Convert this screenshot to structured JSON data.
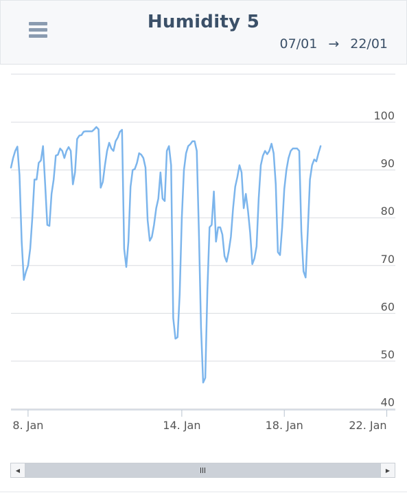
{
  "header": {
    "title": "Humidity 5",
    "range_start": "07/01",
    "range_arrow": "→",
    "range_end": "22/01"
  },
  "icons": {
    "menu": "hamburger-menu-icon",
    "scroll_left": "arrow-left-icon",
    "scroll_right": "arrow-right-icon",
    "scroll_grip": "grip-icon"
  },
  "colors": {
    "line": "#7cb5ec",
    "title": "#3b5068",
    "grid": "#d8dbe0"
  },
  "chart_data": {
    "type": "line",
    "title": "Humidity 5",
    "xlabel": "",
    "ylabel": "",
    "x_range": [
      "2024-01-07 08:00",
      "2024-01-22 08:00"
    ],
    "ylim": [
      40,
      100
    ],
    "y_ticks": [
      40,
      50,
      60,
      70,
      80,
      90,
      100
    ],
    "x_ticks": [
      "8. Jan",
      "14. Jan",
      "18. Jan",
      "22. Jan"
    ],
    "grid": true,
    "series": [
      {
        "values": [
          [
            "2024-01-07 08:00",
            90.5
          ],
          [
            "2024-01-07 10:00",
            92.5
          ],
          [
            "2024-01-07 12:00",
            94.0
          ],
          [
            "2024-01-07 14:00",
            94.9
          ],
          [
            "2024-01-07 16:00",
            89.0
          ],
          [
            "2024-01-07 18:00",
            75.0
          ],
          [
            "2024-01-07 20:00",
            67.0
          ],
          [
            "2024-01-07 22:00",
            68.7
          ],
          [
            "2024-01-08 00:00",
            70.0
          ],
          [
            "2024-01-08 02:00",
            73.5
          ],
          [
            "2024-01-08 04:00",
            80.0
          ],
          [
            "2024-01-08 06:00",
            88.0
          ],
          [
            "2024-01-08 08:00",
            88.0
          ],
          [
            "2024-01-08 10:00",
            91.5
          ],
          [
            "2024-01-08 12:00",
            92.0
          ],
          [
            "2024-01-08 14:00",
            95.0
          ],
          [
            "2024-01-08 16:00",
            87.0
          ],
          [
            "2024-01-08 18:00",
            78.5
          ],
          [
            "2024-01-08 20:00",
            78.3
          ],
          [
            "2024-01-08 22:00",
            85.0
          ],
          [
            "2024-01-09 00:00",
            88.0
          ],
          [
            "2024-01-09 02:00",
            93.0
          ],
          [
            "2024-01-09 04:00",
            93.2
          ],
          [
            "2024-01-09 06:00",
            94.5
          ],
          [
            "2024-01-09 08:00",
            94.0
          ],
          [
            "2024-01-09 10:00",
            92.5
          ],
          [
            "2024-01-09 12:00",
            94.0
          ],
          [
            "2024-01-09 14:00",
            94.8
          ],
          [
            "2024-01-09 16:00",
            94.0
          ],
          [
            "2024-01-09 18:00",
            87.0
          ],
          [
            "2024-01-09 20:00",
            89.5
          ],
          [
            "2024-01-09 22:00",
            96.5
          ],
          [
            "2024-01-10 00:00",
            97.2
          ],
          [
            "2024-01-10 02:00",
            97.3
          ],
          [
            "2024-01-10 04:00",
            98.0
          ],
          [
            "2024-01-10 06:00",
            98.1
          ],
          [
            "2024-01-10 08:00",
            98.1
          ],
          [
            "2024-01-10 10:00",
            98.1
          ],
          [
            "2024-01-10 12:00",
            98.1
          ],
          [
            "2024-01-10 14:00",
            98.5
          ],
          [
            "2024-01-10 16:00",
            99.0
          ],
          [
            "2024-01-10 18:00",
            98.5
          ],
          [
            "2024-01-10 20:00",
            86.3
          ],
          [
            "2024-01-10 22:00",
            87.5
          ],
          [
            "2024-01-11 00:00",
            91.0
          ],
          [
            "2024-01-11 02:00",
            94.0
          ],
          [
            "2024-01-11 04:00",
            95.7
          ],
          [
            "2024-01-11 06:00",
            94.5
          ],
          [
            "2024-01-11 08:00",
            94.0
          ],
          [
            "2024-01-11 10:00",
            96.0
          ],
          [
            "2024-01-11 12:00",
            96.8
          ],
          [
            "2024-01-11 14:00",
            98.0
          ],
          [
            "2024-01-11 16:00",
            98.4
          ],
          [
            "2024-01-11 18:00",
            73.5
          ],
          [
            "2024-01-11 20:00",
            69.7
          ],
          [
            "2024-01-11 22:00",
            75.0
          ],
          [
            "2024-01-12 00:00",
            86.5
          ],
          [
            "2024-01-12 02:00",
            90.0
          ],
          [
            "2024-01-12 04:00",
            90.2
          ],
          [
            "2024-01-12 06:00",
            91.5
          ],
          [
            "2024-01-12 08:00",
            93.5
          ],
          [
            "2024-01-12 10:00",
            93.2
          ],
          [
            "2024-01-12 12:00",
            92.5
          ],
          [
            "2024-01-12 14:00",
            90.5
          ],
          [
            "2024-01-12 16:00",
            79.5
          ],
          [
            "2024-01-12 18:00",
            75.2
          ],
          [
            "2024-01-12 20:00",
            76.0
          ],
          [
            "2024-01-12 22:00",
            78.5
          ],
          [
            "2024-01-13 00:00",
            82.0
          ],
          [
            "2024-01-13 02:00",
            84.0
          ],
          [
            "2024-01-13 04:00",
            89.5
          ],
          [
            "2024-01-13 06:00",
            84.0
          ],
          [
            "2024-01-13 08:00",
            83.5
          ],
          [
            "2024-01-13 10:00",
            94.0
          ],
          [
            "2024-01-13 12:00",
            95.0
          ],
          [
            "2024-01-13 14:00",
            91.0
          ],
          [
            "2024-01-13 16:00",
            59.0
          ],
          [
            "2024-01-13 18:00",
            54.7
          ],
          [
            "2024-01-13 20:00",
            55.0
          ],
          [
            "2024-01-13 22:00",
            64.0
          ],
          [
            "2024-01-14 00:00",
            80.0
          ],
          [
            "2024-01-14 02:00",
            90.0
          ],
          [
            "2024-01-14 04:00",
            93.5
          ],
          [
            "2024-01-14 06:00",
            95.0
          ],
          [
            "2024-01-14 08:00",
            95.4
          ],
          [
            "2024-01-14 10:00",
            96.0
          ],
          [
            "2024-01-14 12:00",
            96.0
          ],
          [
            "2024-01-14 14:00",
            94.0
          ],
          [
            "2024-01-14 16:00",
            77.0
          ],
          [
            "2024-01-14 18:00",
            57.0
          ],
          [
            "2024-01-14 20:00",
            45.5
          ],
          [
            "2024-01-14 22:00",
            46.5
          ],
          [
            "2024-01-15 00:00",
            65.0
          ],
          [
            "2024-01-15 02:00",
            78.0
          ],
          [
            "2024-01-15 04:00",
            78.5
          ],
          [
            "2024-01-15 06:00",
            85.5
          ],
          [
            "2024-01-15 08:00",
            75.0
          ],
          [
            "2024-01-15 10:00",
            78.0
          ],
          [
            "2024-01-15 12:00",
            78.0
          ],
          [
            "2024-01-15 14:00",
            76.5
          ],
          [
            "2024-01-15 16:00",
            72.0
          ],
          [
            "2024-01-15 18:00",
            70.8
          ],
          [
            "2024-01-15 20:00",
            73.0
          ],
          [
            "2024-01-15 22:00",
            76.0
          ],
          [
            "2024-01-16 00:00",
            82.0
          ],
          [
            "2024-01-16 02:00",
            86.5
          ],
          [
            "2024-01-16 04:00",
            88.5
          ],
          [
            "2024-01-16 06:00",
            91.0
          ],
          [
            "2024-01-16 08:00",
            89.5
          ],
          [
            "2024-01-16 10:00",
            82.0
          ],
          [
            "2024-01-16 12:00",
            85.0
          ],
          [
            "2024-01-16 14:00",
            81.5
          ],
          [
            "2024-01-16 16:00",
            77.0
          ],
          [
            "2024-01-16 18:00",
            70.3
          ],
          [
            "2024-01-16 20:00",
            71.5
          ],
          [
            "2024-01-16 22:00",
            74.0
          ],
          [
            "2024-01-17 00:00",
            84.0
          ],
          [
            "2024-01-17 02:00",
            91.0
          ],
          [
            "2024-01-17 04:00",
            93.0
          ],
          [
            "2024-01-17 06:00",
            94.0
          ],
          [
            "2024-01-17 08:00",
            93.3
          ],
          [
            "2024-01-17 10:00",
            94.0
          ],
          [
            "2024-01-17 12:00",
            95.5
          ],
          [
            "2024-01-17 14:00",
            93.5
          ],
          [
            "2024-01-17 16:00",
            87.0
          ],
          [
            "2024-01-17 18:00",
            72.8
          ],
          [
            "2024-01-17 20:00",
            72.2
          ],
          [
            "2024-01-17 22:00",
            78.0
          ],
          [
            "2024-01-18 00:00",
            86.0
          ],
          [
            "2024-01-18 02:00",
            90.0
          ],
          [
            "2024-01-18 04:00",
            92.5
          ],
          [
            "2024-01-18 06:00",
            94.0
          ],
          [
            "2024-01-18 08:00",
            94.5
          ],
          [
            "2024-01-18 10:00",
            94.5
          ],
          [
            "2024-01-18 12:00",
            94.5
          ],
          [
            "2024-01-18 14:00",
            94.0
          ],
          [
            "2024-01-18 16:00",
            77.0
          ],
          [
            "2024-01-18 18:00",
            68.8
          ],
          [
            "2024-01-18 20:00",
            67.5
          ],
          [
            "2024-01-18 22:00",
            77.0
          ],
          [
            "2024-01-19 00:00",
            88.0
          ],
          [
            "2024-01-19 02:00",
            91.0
          ],
          [
            "2024-01-19 04:00",
            92.2
          ],
          [
            "2024-01-19 06:00",
            91.8
          ],
          [
            "2024-01-19 08:00",
            93.5
          ],
          [
            "2024-01-19 10:00",
            95.0
          ]
        ]
      }
    ]
  }
}
